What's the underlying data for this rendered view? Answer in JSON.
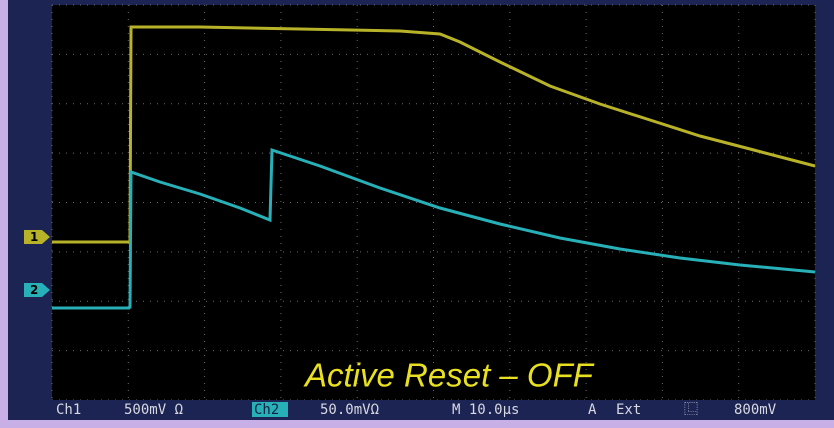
{
  "channel_markers": [
    "1",
    "2"
  ],
  "annotation": "Active Reset  – OFF",
  "status_bar": {
    "ch1_label": "Ch1",
    "ch1_scale": "500mV Ω",
    "ch2_label": "Ch2",
    "ch2_scale": "50.0mVΩ",
    "timebase": "M 10.0µs",
    "trigger_mode": "A",
    "trigger_source": "Ext",
    "trigger_slope": "⿺",
    "trigger_level": "800mV"
  }
}
